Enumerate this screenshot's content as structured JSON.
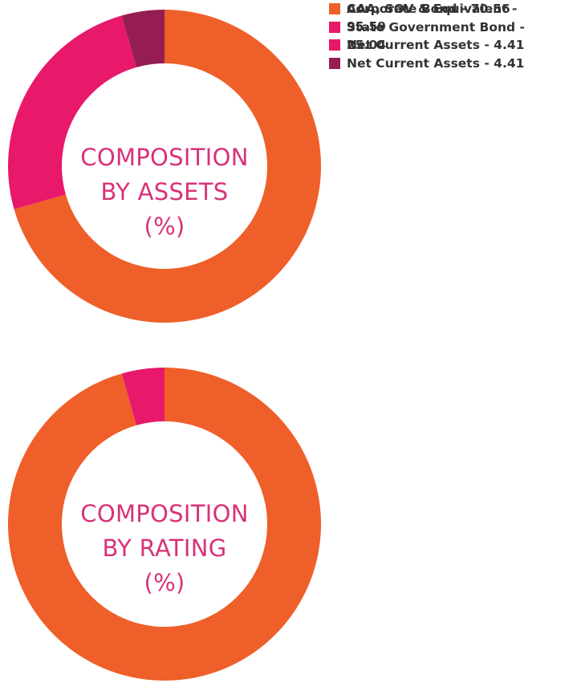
{
  "colors": {
    "orange": "#ef5f2a",
    "pink": "#e8186b",
    "maroon": "#951d52",
    "center_text": "#d8327a"
  },
  "chart_data": [
    {
      "type": "pie",
      "donut": true,
      "center_text": [
        "COMPOSITION",
        "BY ASSETS",
        "(%)"
      ],
      "legend_position": "right",
      "slices": [
        {
          "label": "Corporate Bond - 70.56",
          "value": 70.56,
          "color": "#ef5f2a"
        },
        {
          "label": "State Government Bond - 25.04",
          "value": 25.04,
          "color": "#e8186b"
        },
        {
          "label": "Net Current Assets - 4.41",
          "value": 4.41,
          "color": "#951d52"
        }
      ]
    },
    {
      "type": "pie",
      "donut": true,
      "center_text": [
        "COMPOSITION",
        "BY RATING",
        "(%)"
      ],
      "legend_position": "right",
      "slices": [
        {
          "label": "AAA, SOV & Equivalent - 95.59",
          "value": 95.59,
          "color": "#ef5f2a"
        },
        {
          "label": "Net Current Assets - 4.41",
          "value": 4.41,
          "color": "#e8186b"
        }
      ]
    }
  ]
}
